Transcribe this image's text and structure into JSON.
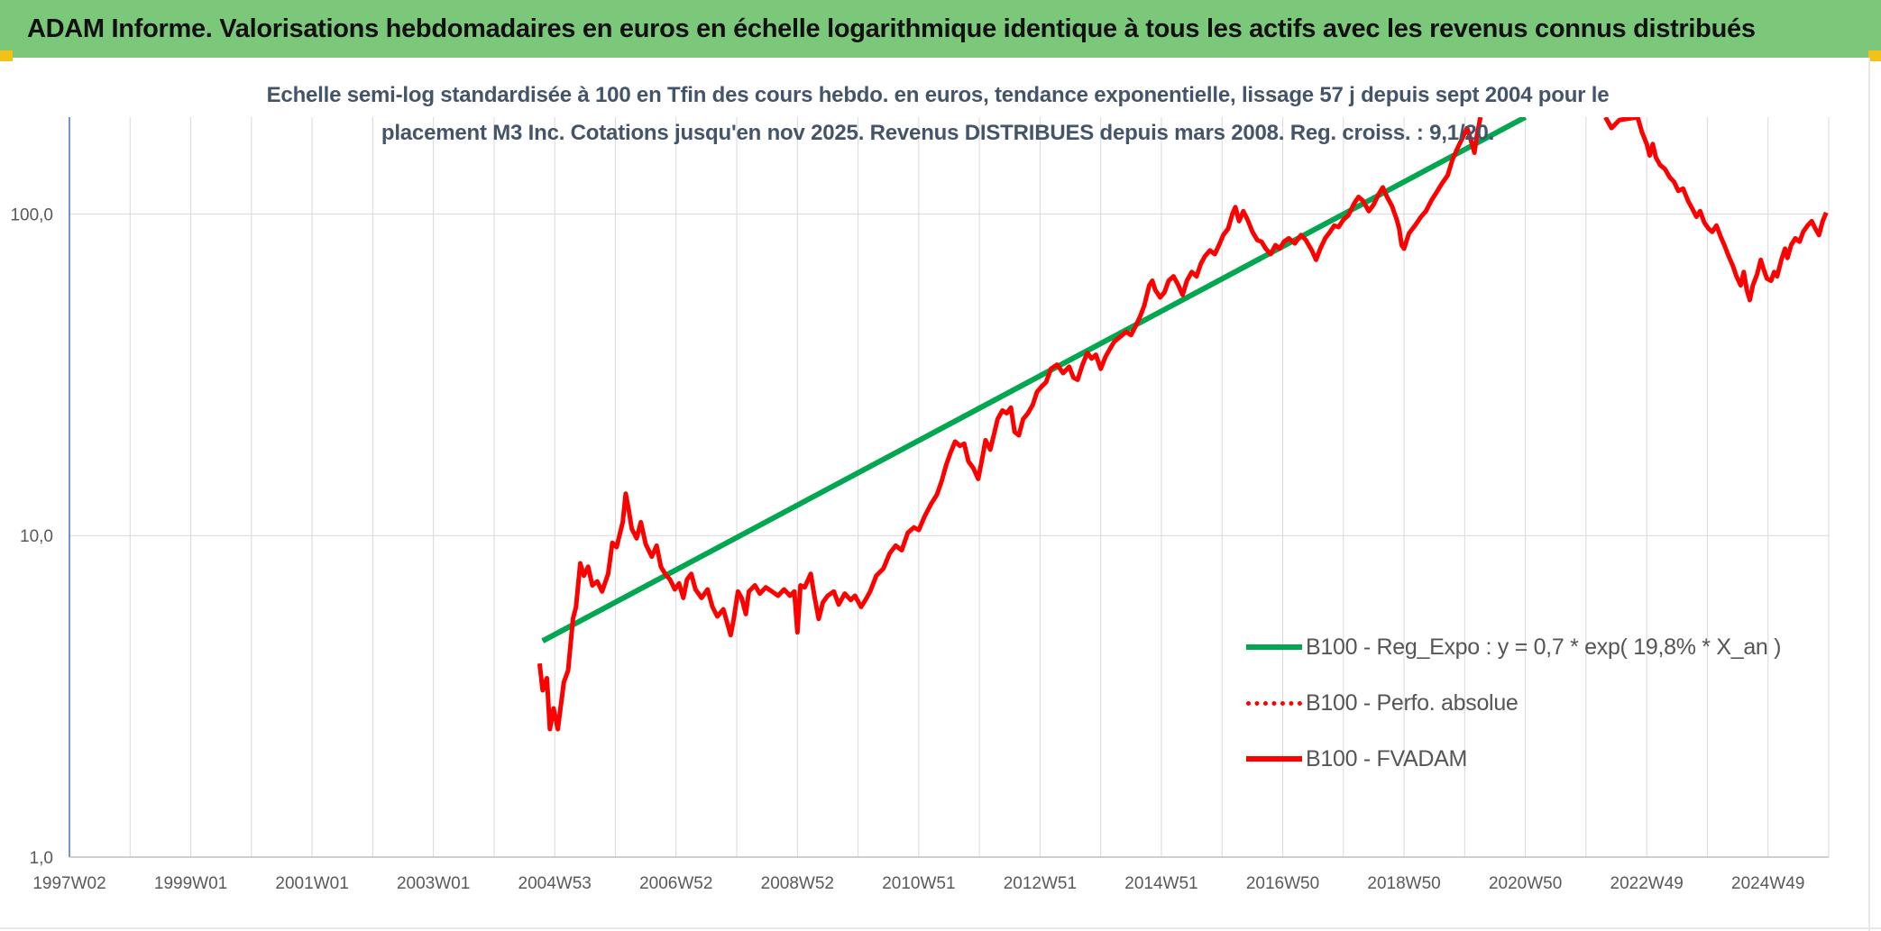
{
  "banner": {
    "title": "ADAM Informe. Valorisations hebdomadaires en euros en échelle logarithmique identique à tous les actifs avec les revenus connus distribués"
  },
  "colors": {
    "banner_bg": "#7cc87a",
    "corner_accent": "#f2c21a",
    "price_line": "#ff0000",
    "trend_line": "#00a650",
    "subtitle_text": "#44546a",
    "axis_text": "#595959",
    "gridline": "#d9d9d9"
  },
  "chart_data": {
    "type": "line",
    "title_lines": [
      "Echelle semi-log standardisée à 100 en Tfin des cours hebdo. en euros, tendance exponentielle, lissage 57 j depuis sept 2004 pour le",
      "placement M3 Inc. Cotations jusqu'en nov 2025. Revenus DISTRIBUES depuis mars 2008. Reg. croiss. : 9,1/20."
    ],
    "xlabel": "",
    "ylabel": "",
    "y_scale": "log",
    "ylim": [
      1,
      200
    ],
    "y_ticks": [
      "1,0",
      "10,0",
      "100,0"
    ],
    "y_tick_values": [
      1,
      10,
      100
    ],
    "x_range": [
      1997.0,
      2026.0
    ],
    "x_ticks": [
      "1997W02",
      "1999W01",
      "2001W01",
      "2003W01",
      "2004W53",
      "2006W52",
      "2008W52",
      "2010W51",
      "2012W51",
      "2014W51",
      "2016W50",
      "2018W50",
      "2020W50",
      "2022W49",
      "2024W49"
    ],
    "x_tick_years": [
      1997.0,
      1999.0,
      2001.0,
      2003.0,
      2005.0,
      2007.0,
      2009.0,
      2011.0,
      2013.0,
      2015.0,
      2017.0,
      2019.0,
      2021.0,
      2023.0,
      2025.0
    ],
    "grid": true,
    "legend_position": "bottom-right",
    "series": [
      {
        "name": "B100 - Reg_Expo : y = 0,7 * exp( 19,8% *  X_an )",
        "style": "solid-green",
        "points": [
          [
            2004.8,
            4.7
          ],
          [
            2021.0,
            200.0
          ]
        ]
      },
      {
        "name": "B100 - Perfo. absolue",
        "style": "dotted-red",
        "points": []
      },
      {
        "name": "B100 - FVADAM",
        "style": "solid-red",
        "points": [
          [
            2004.75,
            4.0
          ],
          [
            2004.8,
            3.3
          ],
          [
            2004.87,
            3.6
          ],
          [
            2004.92,
            2.5
          ],
          [
            2004.98,
            2.9
          ],
          [
            2005.05,
            2.5
          ],
          [
            2005.15,
            3.5
          ],
          [
            2005.22,
            3.8
          ],
          [
            2005.3,
            5.5
          ],
          [
            2005.35,
            6.0
          ],
          [
            2005.42,
            8.2
          ],
          [
            2005.48,
            7.5
          ],
          [
            2005.55,
            8.0
          ],
          [
            2005.62,
            7.0
          ],
          [
            2005.7,
            7.2
          ],
          [
            2005.78,
            6.7
          ],
          [
            2005.88,
            7.6
          ],
          [
            2005.95,
            9.5
          ],
          [
            2006.02,
            9.2
          ],
          [
            2006.12,
            11.0
          ],
          [
            2006.17,
            13.5
          ],
          [
            2006.22,
            12.0
          ],
          [
            2006.27,
            10.5
          ],
          [
            2006.35,
            9.8
          ],
          [
            2006.42,
            11.0
          ],
          [
            2006.5,
            9.4
          ],
          [
            2006.6,
            8.6
          ],
          [
            2006.68,
            9.3
          ],
          [
            2006.75,
            8.0
          ],
          [
            2006.82,
            7.6
          ],
          [
            2006.9,
            7.3
          ],
          [
            2006.98,
            6.8
          ],
          [
            2007.05,
            7.1
          ],
          [
            2007.12,
            6.4
          ],
          [
            2007.18,
            7.3
          ],
          [
            2007.25,
            7.6
          ],
          [
            2007.32,
            6.8
          ],
          [
            2007.42,
            6.4
          ],
          [
            2007.52,
            6.8
          ],
          [
            2007.6,
            6.0
          ],
          [
            2007.68,
            5.6
          ],
          [
            2007.78,
            5.9
          ],
          [
            2007.85,
            5.3
          ],
          [
            2007.9,
            4.9
          ],
          [
            2007.95,
            5.5
          ],
          [
            2008.02,
            6.7
          ],
          [
            2008.08,
            6.4
          ],
          [
            2008.15,
            5.7
          ],
          [
            2008.2,
            6.7
          ],
          [
            2008.3,
            7.0
          ],
          [
            2008.38,
            6.6
          ],
          [
            2008.48,
            6.9
          ],
          [
            2008.58,
            6.7
          ],
          [
            2008.68,
            6.5
          ],
          [
            2008.78,
            6.8
          ],
          [
            2008.88,
            6.5
          ],
          [
            2008.95,
            6.7
          ],
          [
            2009.0,
            5.0
          ],
          [
            2009.05,
            7.0
          ],
          [
            2009.12,
            6.9
          ],
          [
            2009.22,
            7.6
          ],
          [
            2009.28,
            6.5
          ],
          [
            2009.35,
            5.5
          ],
          [
            2009.42,
            6.2
          ],
          [
            2009.5,
            6.5
          ],
          [
            2009.6,
            6.7
          ],
          [
            2009.68,
            6.1
          ],
          [
            2009.78,
            6.6
          ],
          [
            2009.88,
            6.3
          ],
          [
            2009.95,
            6.5
          ],
          [
            2010.05,
            6.0
          ],
          [
            2010.12,
            6.3
          ],
          [
            2010.2,
            6.7
          ],
          [
            2010.3,
            7.5
          ],
          [
            2010.42,
            7.9
          ],
          [
            2010.52,
            8.8
          ],
          [
            2010.62,
            9.3
          ],
          [
            2010.72,
            9.0
          ],
          [
            2010.82,
            10.2
          ],
          [
            2010.92,
            10.6
          ],
          [
            2011.0,
            10.4
          ],
          [
            2011.1,
            11.5
          ],
          [
            2011.2,
            12.5
          ],
          [
            2011.3,
            13.4
          ],
          [
            2011.38,
            14.8
          ],
          [
            2011.45,
            16.5
          ],
          [
            2011.52,
            18.0
          ],
          [
            2011.6,
            19.6
          ],
          [
            2011.68,
            19.0
          ],
          [
            2011.75,
            19.3
          ],
          [
            2011.82,
            17.0
          ],
          [
            2011.9,
            16.2
          ],
          [
            2011.98,
            15.0
          ],
          [
            2012.05,
            17.5
          ],
          [
            2012.1,
            19.8
          ],
          [
            2012.18,
            18.5
          ],
          [
            2012.25,
            21.0
          ],
          [
            2012.3,
            23.0
          ],
          [
            2012.38,
            24.5
          ],
          [
            2012.45,
            24.0
          ],
          [
            2012.52,
            25.0
          ],
          [
            2012.58,
            21.0
          ],
          [
            2012.65,
            20.5
          ],
          [
            2012.72,
            23.0
          ],
          [
            2012.8,
            24.0
          ],
          [
            2012.88,
            25.5
          ],
          [
            2012.95,
            28.0
          ],
          [
            2013.02,
            29.0
          ],
          [
            2013.1,
            30.0
          ],
          [
            2013.18,
            33.0
          ],
          [
            2013.28,
            34.0
          ],
          [
            2013.38,
            32.0
          ],
          [
            2013.48,
            33.5
          ],
          [
            2013.55,
            31.0
          ],
          [
            2013.62,
            30.5
          ],
          [
            2013.7,
            34.0
          ],
          [
            2013.78,
            37.0
          ],
          [
            2013.85,
            35.5
          ],
          [
            2013.92,
            36.5
          ],
          [
            2014.0,
            33.0
          ],
          [
            2014.08,
            36.0
          ],
          [
            2014.15,
            38.0
          ],
          [
            2014.22,
            40.0
          ],
          [
            2014.32,
            41.5
          ],
          [
            2014.42,
            43.0
          ],
          [
            2014.5,
            42.0
          ],
          [
            2014.58,
            45.0
          ],
          [
            2014.65,
            48.0
          ],
          [
            2014.72,
            52.0
          ],
          [
            2014.8,
            60.0
          ],
          [
            2014.85,
            62.0
          ],
          [
            2014.9,
            58.0
          ],
          [
            2014.98,
            55.0
          ],
          [
            2015.05,
            57.0
          ],
          [
            2015.12,
            62.0
          ],
          [
            2015.2,
            64.0
          ],
          [
            2015.28,
            60.0
          ],
          [
            2015.35,
            56.0
          ],
          [
            2015.42,
            62.0
          ],
          [
            2015.5,
            66.0
          ],
          [
            2015.58,
            64.0
          ],
          [
            2015.65,
            70.0
          ],
          [
            2015.72,
            74.0
          ],
          [
            2015.8,
            77.0
          ],
          [
            2015.88,
            75.0
          ],
          [
            2015.95,
            80.0
          ],
          [
            2016.02,
            86.0
          ],
          [
            2016.1,
            90.0
          ],
          [
            2016.17,
            100.0
          ],
          [
            2016.22,
            105.0
          ],
          [
            2016.28,
            95.0
          ],
          [
            2016.35,
            102.0
          ],
          [
            2016.42,
            96.0
          ],
          [
            2016.5,
            88.0
          ],
          [
            2016.58,
            83.0
          ],
          [
            2016.65,
            82.0
          ],
          [
            2016.72,
            78.0
          ],
          [
            2016.8,
            75.0
          ],
          [
            2016.88,
            80.0
          ],
          [
            2016.95,
            78.0
          ],
          [
            2017.02,
            82.0
          ],
          [
            2017.1,
            84.0
          ],
          [
            2017.2,
            81.0
          ],
          [
            2017.3,
            86.0
          ],
          [
            2017.38,
            83.0
          ],
          [
            2017.48,
            77.0
          ],
          [
            2017.55,
            72.0
          ],
          [
            2017.62,
            78.0
          ],
          [
            2017.7,
            84.0
          ],
          [
            2017.78,
            88.0
          ],
          [
            2017.85,
            92.0
          ],
          [
            2017.92,
            91.0
          ],
          [
            2018.0,
            96.0
          ],
          [
            2018.08,
            99.0
          ],
          [
            2018.18,
            108.0
          ],
          [
            2018.25,
            113.0
          ],
          [
            2018.32,
            110.0
          ],
          [
            2018.42,
            102.0
          ],
          [
            2018.5,
            107.0
          ],
          [
            2018.58,
            115.0
          ],
          [
            2018.65,
            121.0
          ],
          [
            2018.72,
            113.0
          ],
          [
            2018.8,
            106.0
          ],
          [
            2018.88,
            96.0
          ],
          [
            2018.92,
            90.0
          ],
          [
            2018.96,
            80.0
          ],
          [
            2019.0,
            78.0
          ],
          [
            2019.08,
            87.0
          ],
          [
            2019.18,
            92.0
          ],
          [
            2019.28,
            98.0
          ],
          [
            2019.36,
            102.0
          ],
          [
            2019.45,
            110.0
          ],
          [
            2019.55,
            118.0
          ],
          [
            2019.62,
            124.0
          ],
          [
            2019.72,
            132.0
          ],
          [
            2019.8,
            148.0
          ],
          [
            2019.88,
            160.0
          ],
          [
            2019.96,
            172.0
          ],
          [
            2020.04,
            185.0
          ],
          [
            2020.1,
            170.0
          ],
          [
            2020.16,
            155.0
          ],
          [
            2020.2,
            175.0
          ],
          [
            2020.26,
            200.0
          ]
        ],
        "points_after_gap": [
          [
            2022.32,
            200.0
          ],
          [
            2022.42,
            185.0
          ],
          [
            2022.55,
            196.0
          ],
          [
            2022.7,
            198.0
          ],
          [
            2022.85,
            200.0
          ],
          [
            2022.92,
            180.0
          ],
          [
            2023.0,
            165.0
          ],
          [
            2023.05,
            152.0
          ],
          [
            2023.1,
            165.0
          ],
          [
            2023.15,
            150.0
          ],
          [
            2023.22,
            142.0
          ],
          [
            2023.3,
            138.0
          ],
          [
            2023.38,
            130.0
          ],
          [
            2023.45,
            126.0
          ],
          [
            2023.52,
            118.0
          ],
          [
            2023.6,
            120.0
          ],
          [
            2023.68,
            110.0
          ],
          [
            2023.75,
            104.0
          ],
          [
            2023.82,
            98.0
          ],
          [
            2023.88,
            102.0
          ],
          [
            2023.95,
            94.0
          ],
          [
            2024.02,
            90.0
          ],
          [
            2024.08,
            88.0
          ],
          [
            2024.15,
            92.0
          ],
          [
            2024.22,
            85.0
          ],
          [
            2024.28,
            80.0
          ],
          [
            2024.35,
            74.0
          ],
          [
            2024.42,
            69.0
          ],
          [
            2024.48,
            64.0
          ],
          [
            2024.55,
            60.0
          ],
          [
            2024.6,
            66.0
          ],
          [
            2024.65,
            58.0
          ],
          [
            2024.7,
            54.0
          ],
          [
            2024.75,
            60.0
          ],
          [
            2024.82,
            65.0
          ],
          [
            2024.88,
            72.0
          ],
          [
            2024.92,
            68.0
          ],
          [
            2024.98,
            63.0
          ],
          [
            2025.05,
            62.0
          ],
          [
            2025.1,
            66.0
          ],
          [
            2025.15,
            64.0
          ],
          [
            2025.22,
            72.0
          ],
          [
            2025.28,
            78.0
          ],
          [
            2025.32,
            73.0
          ],
          [
            2025.38,
            80.0
          ],
          [
            2025.45,
            84.0
          ],
          [
            2025.52,
            82.0
          ],
          [
            2025.58,
            88.0
          ],
          [
            2025.65,
            92.0
          ],
          [
            2025.72,
            95.0
          ],
          [
            2025.78,
            90.0
          ],
          [
            2025.84,
            86.0
          ],
          [
            2025.9,
            95.0
          ],
          [
            2025.96,
            101.0
          ]
        ]
      }
    ]
  }
}
